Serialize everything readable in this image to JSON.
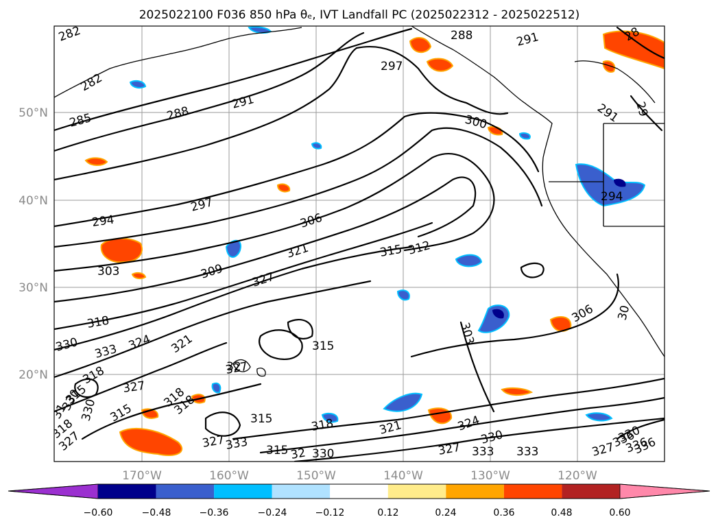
{
  "title": "2025022100 F036 850 hPa θₑ, IVT Landfall PC (2025022312 - 2025022512)",
  "lat_ticks": [
    "50°N",
    "40°N",
    "30°N",
    "20°N"
  ],
  "lon_ticks": [
    "170°W",
    "160°W",
    "150°W",
    "140°W",
    "130°W",
    "120°W"
  ],
  "colorbar": {
    "ticks": [
      "−0.60",
      "−0.48",
      "−0.36",
      "−0.24",
      "−0.12",
      "0.12",
      "0.24",
      "0.36",
      "0.48",
      "0.60"
    ],
    "under_color": "#9b30d0",
    "over_color": "#ff88aa",
    "colors": [
      "#00008b",
      "#3a5fcd",
      "#00bfff",
      "#b0e2ff",
      "#ffffff",
      "#ffec8b",
      "#ffa500",
      "#ff4500",
      "#b22222"
    ]
  },
  "contour_labels": [
    "282",
    "282",
    "285",
    "288",
    "291",
    "297",
    "288",
    "291",
    "297",
    "294",
    "303",
    "306",
    "309",
    "321",
    "327",
    "315",
    "312",
    "300",
    "291",
    "29",
    "294",
    "306",
    "303",
    "30",
    "318",
    "330",
    "333",
    "324",
    "321",
    "315",
    "327",
    "318",
    "318",
    "330",
    "327",
    "333",
    "333",
    "315",
    "318",
    "321",
    "315",
    "327",
    "336",
    "327",
    "324",
    "330",
    "333",
    "327",
    "315",
    "32",
    "330",
    "318",
    "32",
    "31",
    "28",
    "327",
    "336",
    "336",
    "330",
    "330",
    "318",
    "315"
  ]
}
